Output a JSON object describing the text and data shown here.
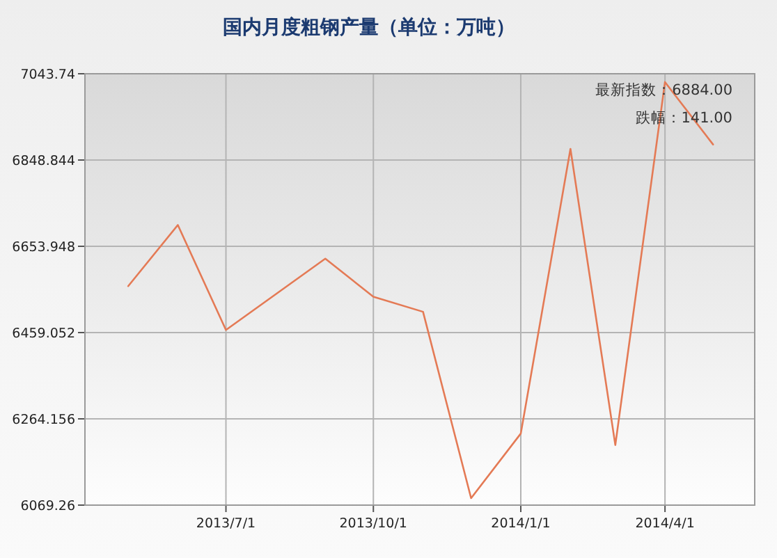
{
  "chart_data": {
    "type": "line",
    "title": "国内月度粗钢产量（单位：万吨）",
    "x": [
      "2013-05-01",
      "2013-06-01",
      "2013-07-01",
      "2013-09-01",
      "2013-10-01",
      "2013-11-01",
      "2013-12-01",
      "2014-01-01",
      "2014-02-01",
      "2014-03-01",
      "2014-04-01",
      "2014-05-01"
    ],
    "series": [
      {
        "color": "#e47a55",
        "values": [
          6564,
          6702,
          6465,
          6626,
          6540,
          6506,
          6085,
          6231,
          6874,
          6205,
          7025,
          6884
        ]
      }
    ],
    "xlim": [
      "2013-04-04",
      "2014-05-27"
    ],
    "xticks": [
      {
        "value": "2013-07-01",
        "label": "2013/7/1"
      },
      {
        "value": "2013-10-01",
        "label": "2013/10/1"
      },
      {
        "value": "2014-01-01",
        "label": "2014/1/1"
      },
      {
        "value": "2014-04-01",
        "label": "2014/4/1"
      }
    ],
    "ylim": [
      6069.26,
      7043.74
    ],
    "yticks": [
      6069.26,
      6264.156,
      6459.052,
      6653.948,
      6848.844,
      7043.74
    ],
    "grid": true,
    "annotations": [
      "最新指数：6884.00",
      "跌幅：141.00"
    ]
  }
}
